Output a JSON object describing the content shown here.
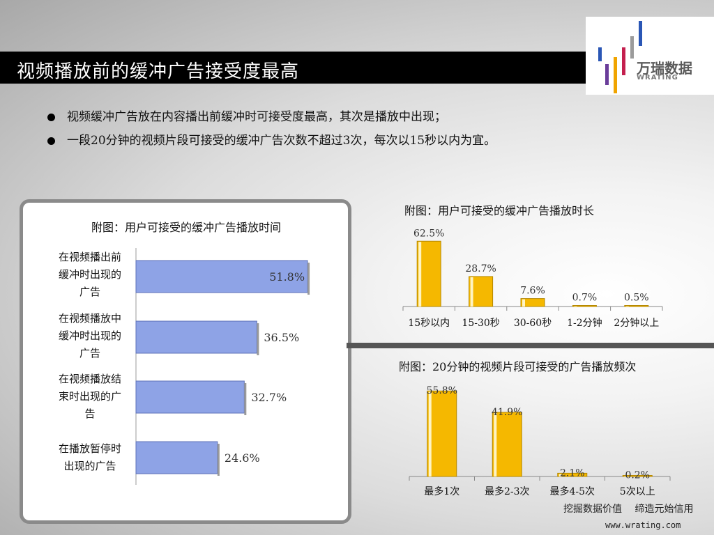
{
  "slide": {
    "title": "视频播放前的缓冲广告接受度最高",
    "bullets": [
      "视频缓冲广告放在内容播出前缓冲时可接受度最高，其次是播放中出现；",
      "一段20分钟的视频片段可接受的缓冲广告次数不超过3次，每次以15秒以内为宜。"
    ],
    "footer_slogan": "挖掘数据价值　 缔造元始信用",
    "footer_url": "www.wrating.com"
  },
  "logo": {
    "cn": "万瑞数据",
    "en": "WRATING"
  },
  "colors": {
    "blue_bar": "#8ea3e6",
    "yellow_bar": "#f5b800",
    "title_bg": "#000000"
  },
  "chart_data": [
    {
      "type": "bar",
      "orientation": "horizontal",
      "title": "附图：用户可接受的缓冲广告播放时间",
      "categories": [
        "在视频播出前缓冲时出现的广告",
        "在视频播放中缓冲时出现的广告",
        "在视频播放结束时出现的广告",
        "在播放暂停时出现的广告"
      ],
      "category_lines": [
        [
          "在视频播出前",
          "缓冲时出现的",
          "广告"
        ],
        [
          "在视频播放中",
          "缓冲时出现的",
          "广告"
        ],
        [
          "在视频播放结",
          "束时出现的广",
          "告"
        ],
        [
          "在播放暂停时",
          "出现的广告"
        ]
      ],
      "values": [
        51.8,
        36.5,
        32.7,
        24.6
      ],
      "data_labels": [
        "51.8%",
        "36.5%",
        "32.7%",
        "24.6%"
      ],
      "unit": "%"
    },
    {
      "type": "bar",
      "title": "附图：用户可接受的缓冲广告播放时长",
      "categories": [
        "15秒以内",
        "15-30秒",
        "30-60秒",
        "1-2分钟",
        "2分钟以上"
      ],
      "values": [
        62.5,
        28.7,
        7.6,
        0.7,
        0.5
      ],
      "data_labels": [
        "62.5%",
        "28.7%",
        "7.6%",
        "0.7%",
        "0.5%"
      ],
      "unit": "%"
    },
    {
      "type": "bar",
      "title": "附图：20分钟的视频片段可接受的广告播放频次",
      "categories": [
        "最多1次",
        "最多2-3次",
        "最多4-5次",
        "5次以上"
      ],
      "values": [
        55.8,
        41.9,
        2.1,
        0.2
      ],
      "data_labels": [
        "55.8%",
        "41.9%",
        "2.1%",
        "0.2%"
      ],
      "unit": "%"
    }
  ]
}
